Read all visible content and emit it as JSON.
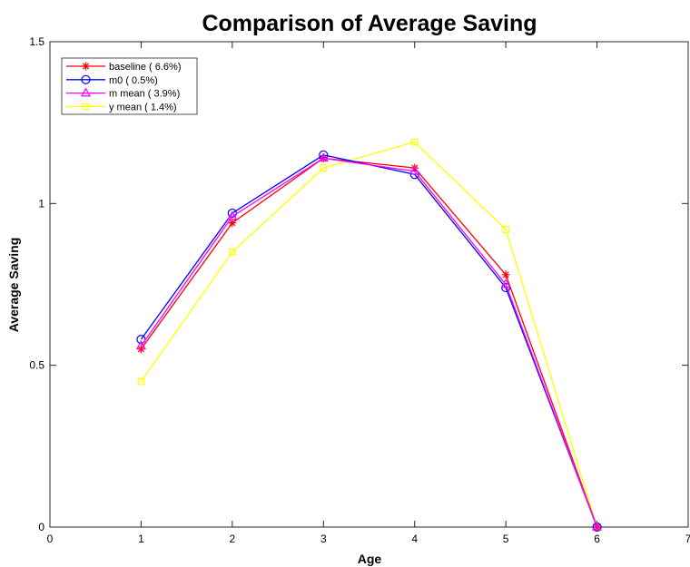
{
  "chart_data": {
    "type": "line",
    "title": "Comparison of Average Saving",
    "xlabel": "Age",
    "ylabel": "Average Saving",
    "xlim": [
      0,
      7
    ],
    "ylim": [
      0,
      1.5
    ],
    "xticks": [
      0,
      1,
      2,
      3,
      4,
      5,
      6,
      7
    ],
    "yticks": [
      0,
      0.5,
      1,
      1.5
    ],
    "xtick_labels": [
      "0",
      "1",
      "2",
      "3",
      "4",
      "5",
      "6",
      "7"
    ],
    "ytick_labels": [
      "0",
      "0.5",
      "1",
      "1.5"
    ],
    "grid": false,
    "legend_position": "top-left",
    "x": [
      1,
      2,
      3,
      4,
      5,
      6
    ],
    "series": [
      {
        "name": "baseline ( 6.6%)",
        "color": "#ff0000",
        "marker": "asterisk",
        "values": [
          0.55,
          0.94,
          1.14,
          1.11,
          0.78,
          0.0
        ]
      },
      {
        "name": "m0 ( 0.5%)",
        "color": "#0000ff",
        "marker": "circle",
        "values": [
          0.58,
          0.97,
          1.15,
          1.09,
          0.74,
          0.0
        ]
      },
      {
        "name": "m mean ( 3.9%)",
        "color": "#ff00ff",
        "marker": "triangle",
        "values": [
          0.56,
          0.96,
          1.14,
          1.1,
          0.75,
          0.0
        ]
      },
      {
        "name": "y mean ( 1.4%)",
        "color": "#ffff00",
        "marker": "square",
        "values": [
          0.45,
          0.85,
          1.11,
          1.19,
          0.92,
          0.0
        ]
      }
    ]
  }
}
